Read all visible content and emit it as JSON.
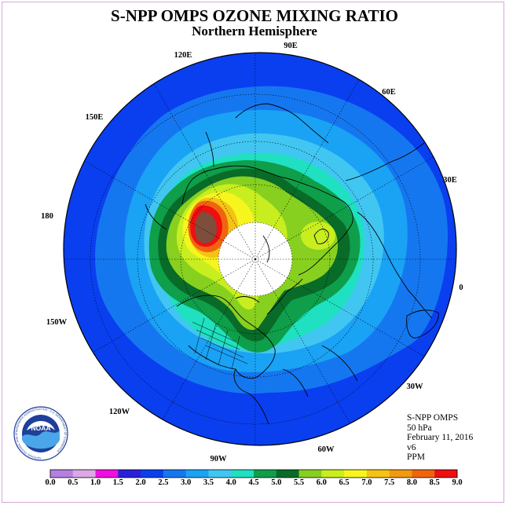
{
  "title": "S-NPP OMPS OZONE MIXING RATIO",
  "subtitle": "Northern Hemisphere",
  "info": {
    "instrument": "S-NPP OMPS",
    "level": "50 hPa",
    "date": "February 11, 2016",
    "version": "v6",
    "unit": "PPM"
  },
  "logo_text": "NOAA",
  "logo_ring_text": "NATIONAL OCEANIC AND ATMOSPHERIC ADMINISTRATION · U.S. DEPARTMENT OF COMMERCE",
  "longitude_labels": [
    {
      "text": "90E",
      "deg": 90
    },
    {
      "text": "60E",
      "deg": 60
    },
    {
      "text": "30E",
      "deg": 30
    },
    {
      "text": "0",
      "deg": 0
    },
    {
      "text": "30W",
      "deg": -30
    },
    {
      "text": "60W",
      "deg": -60
    },
    {
      "text": "90W",
      "deg": -90
    },
    {
      "text": "120W",
      "deg": -120
    },
    {
      "text": "150W",
      "deg": -150
    },
    {
      "text": "180",
      "deg": 180
    },
    {
      "text": "150E",
      "deg": 150
    },
    {
      "text": "120E",
      "deg": 120
    }
  ],
  "colorbar": {
    "ticks": [
      "0.0",
      "0.5",
      "1.0",
      "1.5",
      "2.0",
      "2.5",
      "3.0",
      "3.5",
      "4.0",
      "4.5",
      "5.0",
      "5.5",
      "6.0",
      "6.5",
      "7.0",
      "7.5",
      "8.0",
      "8.5",
      "9.0"
    ],
    "colors": [
      "#b57fe0",
      "#dca8e6",
      "#f00fe0",
      "#2a1fd8",
      "#0a3ff0",
      "#1577f0",
      "#1aa2f5",
      "#41c6f2",
      "#1fe0c0",
      "#0f9e4a",
      "#086b28",
      "#88d020",
      "#c8ee20",
      "#f7f51e",
      "#f5c313",
      "#f09a10",
      "#f06410",
      "#ef0e10",
      "#7d4e3c"
    ]
  },
  "chart_data": {
    "type": "heatmap",
    "projection": "north polar stereographic",
    "variable": "ozone mixing ratio",
    "unit": "PPM",
    "color_range": [
      0.0,
      9.0
    ],
    "features": [
      {
        "region": "equatorward rim",
        "range_ppm": [
          2.0,
          2.5
        ]
      },
      {
        "region": "subtropical band",
        "range_ppm": [
          2.5,
          4.0
        ]
      },
      {
        "region": "Siberia / East Asia maximum",
        "range_ppm": [
          8.0,
          9.0
        ]
      },
      {
        "region": "North America extension",
        "range_ppm": [
          5.5,
          7.0
        ]
      },
      {
        "region": "Scandinavia / Europe",
        "range_ppm": [
          5.0,
          6.0
        ]
      },
      {
        "region": "polar night (no data)",
        "range_ppm": null
      }
    ]
  }
}
